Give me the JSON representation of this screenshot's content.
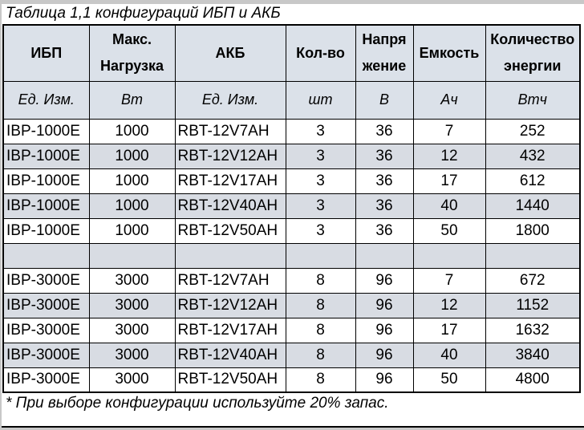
{
  "title": "Таблица 1,1 конфигураций ИБП и АКБ",
  "footnote": "* При выборе конфигурации используйте 20% запас.",
  "colors": {
    "page_background": "#c8c8c8",
    "sheet_background": "#ffffff",
    "header_background": "#dbe1e9",
    "alt_row_background": "#d8dce3",
    "border": "#000000",
    "text": "#000000"
  },
  "table": {
    "headers": [
      "ИБП",
      "Макс.\nНагрузка",
      "АКБ",
      "Кол-во",
      "Напря\nжение",
      "Емкость",
      "Количество\nэнергии"
    ],
    "units": [
      "Ед. Изм.",
      "Вт",
      "Ед. Изм.",
      "шт",
      "В",
      "Ач",
      "Втч"
    ],
    "rows": [
      [
        "IBP-1000E",
        "1000",
        "RBT-12V7AH",
        "3",
        "36",
        "7",
        "252"
      ],
      [
        "IBP-1000E",
        "1000",
        "RBT-12V12AH",
        "3",
        "36",
        "12",
        "432"
      ],
      [
        "IBP-1000E",
        "1000",
        "RBT-12V17AH",
        "3",
        "36",
        "17",
        "612"
      ],
      [
        "IBP-1000E",
        "1000",
        "RBT-12V40AH",
        "3",
        "36",
        "40",
        "1440"
      ],
      [
        "IBP-1000E",
        "1000",
        "RBT-12V50AH",
        "3",
        "36",
        "50",
        "1800"
      ],
      [
        "",
        "",
        "",
        "",
        "",
        "",
        ""
      ],
      [
        "IBP-3000E",
        "3000",
        "RBT-12V7AH",
        "8",
        "96",
        "7",
        "672"
      ],
      [
        "IBP-3000E",
        "3000",
        "RBT-12V12AH",
        "8",
        "96",
        "12",
        "1152"
      ],
      [
        "IBP-3000E",
        "3000",
        "RBT-12V17AH",
        "8",
        "96",
        "17",
        "1632"
      ],
      [
        "IBP-3000E",
        "3000",
        "RBT-12V40AH",
        "8",
        "96",
        "40",
        "3840"
      ],
      [
        "IBP-3000E",
        "3000",
        "RBT-12V50AH",
        "8",
        "96",
        "50",
        "4800"
      ]
    ]
  }
}
